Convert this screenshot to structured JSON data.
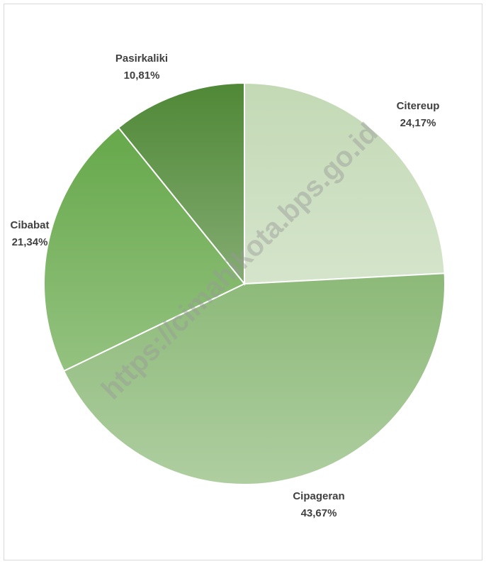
{
  "chart_data": {
    "type": "pie",
    "categories": [
      "Citereup",
      "Cipageran",
      "Cibabat",
      "Pasirkaliki"
    ],
    "values": [
      24.17,
      43.67,
      21.34,
      10.81
    ],
    "value_labels": [
      "24,17%",
      "43,67%",
      "21,34%",
      "10,81%"
    ],
    "colors": [
      "#c3d9b5",
      "#8cb978",
      "#66a84a",
      "#4f8836"
    ],
    "annotation": "https://cimahikota.bps.go.id"
  }
}
